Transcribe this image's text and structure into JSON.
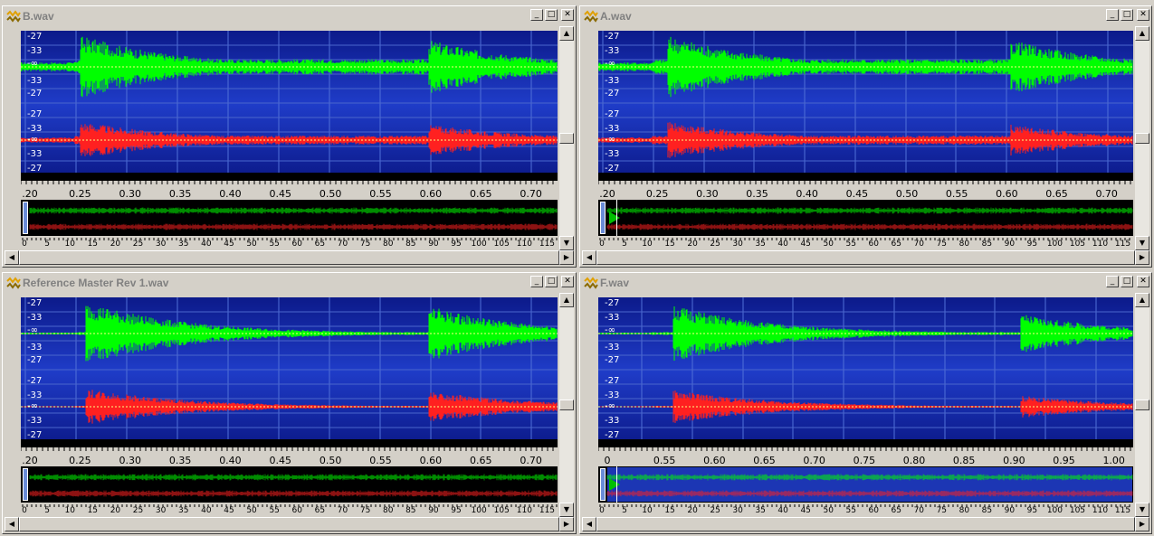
{
  "colors": {
    "left_channel": "#00ff00",
    "right_channel": "#ff2020",
    "wave_bg": "#1f3cc8",
    "chrome": "#d4d0c8"
  },
  "db_labels": [
    "-27",
    "-33",
    "-∞",
    "-33",
    "-27"
  ],
  "windows": [
    {
      "title": "B.wav",
      "ruler_labels": [
        ".20",
        "0.25",
        "0.30",
        "0.35",
        "0.40",
        "0.45",
        "0.50",
        "0.55",
        "0.60",
        "0.65",
        "0.70"
      ],
      "overview_labels": [
        "0",
        "5",
        "10",
        "15",
        "20",
        "25",
        "30",
        "35",
        "40",
        "45",
        "50",
        "55",
        "60",
        "65",
        "70",
        "75",
        "80",
        "85",
        "90",
        "95",
        "100",
        "105",
        "110",
        "115"
      ],
      "play_marker": false
    },
    {
      "title": "A.wav",
      "ruler_labels": [
        ".20",
        "0.25",
        "0.30",
        "0.35",
        "0.40",
        "0.45",
        "0.50",
        "0.55",
        "0.60",
        "0.65",
        "0.70"
      ],
      "overview_labels": [
        "0",
        "5",
        "10",
        "15",
        "20",
        "25",
        "30",
        "35",
        "40",
        "45",
        "50",
        "55",
        "60",
        "65",
        "70",
        "75",
        "80",
        "85",
        "90",
        "95",
        "100",
        "105",
        "110",
        "115"
      ],
      "play_marker": true
    },
    {
      "title": "Reference Master Rev 1.wav",
      "ruler_labels": [
        ".20",
        "0.25",
        "0.30",
        "0.35",
        "0.40",
        "0.45",
        "0.50",
        "0.55",
        "0.60",
        "0.65",
        "0.70"
      ],
      "overview_labels": [
        "0",
        "5",
        "10",
        "15",
        "20",
        "25",
        "30",
        "35",
        "40",
        "45",
        "50",
        "55",
        "60",
        "65",
        "70",
        "75",
        "80",
        "85",
        "90",
        "95",
        "100",
        "105",
        "110",
        "115"
      ],
      "play_marker": false
    },
    {
      "title": "F.wav",
      "ruler_labels": [
        "0",
        "0.55",
        "0.60",
        "0.65",
        "0.70",
        "0.75",
        "0.80",
        "0.85",
        "0.90",
        "0.95",
        "1.00"
      ],
      "overview_labels": [
        "0",
        "5",
        "10",
        "15",
        "20",
        "25",
        "30",
        "35",
        "40",
        "45",
        "50",
        "55",
        "60",
        "65",
        "70",
        "75",
        "80",
        "85",
        "90",
        "95",
        "100",
        "105",
        "110",
        "115"
      ],
      "play_marker": true
    }
  ],
  "buttons": {
    "minimize": "_",
    "maximize": "□",
    "close": "✕"
  },
  "scroll": {
    "up": "▲",
    "down": "▼",
    "left": "◀",
    "right": "▶"
  }
}
